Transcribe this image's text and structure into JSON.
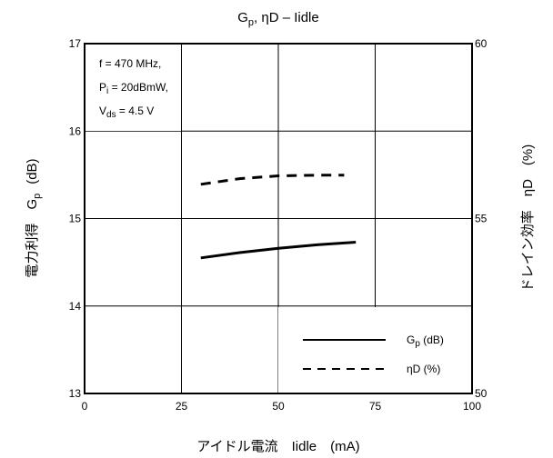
{
  "chart_data": {
    "type": "line",
    "title": "G",
    "title_sub": "p",
    "title_rest": ", ηD – Iidle",
    "xlabel": "アイドル電流　Iidle　(mA)",
    "ylabel_left_main": "電力利得　G",
    "ylabel_left_sub": "p",
    "ylabel_left_unit": "(dB)",
    "ylabel_right": "ドレイン効率　ηD　(%)",
    "xlim": [
      0,
      100
    ],
    "ylim_left": [
      13,
      17
    ],
    "ylim_right": [
      50,
      60
    ],
    "x_ticks": [
      "0",
      "25",
      "50",
      "75",
      "100"
    ],
    "y_ticks_left": [
      "13",
      "14",
      "15",
      "16",
      "17"
    ],
    "y_ticks_right": [
      "50",
      "55",
      "60"
    ],
    "grid": true,
    "legend_position": "bottom-right",
    "annotations": [
      {
        "main": "f = 470 MHz,",
        "sub": ""
      },
      {
        "main": "P",
        "sub": "i",
        "rest": " = 20dBmW,"
      },
      {
        "main": "V",
        "sub": "ds",
        "rest": " = 4.5 V"
      }
    ],
    "series": [
      {
        "name": "Gp (dB)",
        "legend_main": "G",
        "legend_sub": "p",
        "legend_rest": " (dB)",
        "axis": "left",
        "style": "solid",
        "x": [
          30,
          40,
          50,
          60,
          70
        ],
        "y": [
          14.55,
          14.61,
          14.66,
          14.7,
          14.73
        ]
      },
      {
        "name": "ηD (%)",
        "legend_main": "ηD (%)",
        "axis": "right",
        "style": "dashed",
        "x": [
          30,
          40,
          50,
          60,
          67
        ],
        "y": [
          55.98,
          56.14,
          56.22,
          56.24,
          56.24
        ]
      }
    ]
  }
}
